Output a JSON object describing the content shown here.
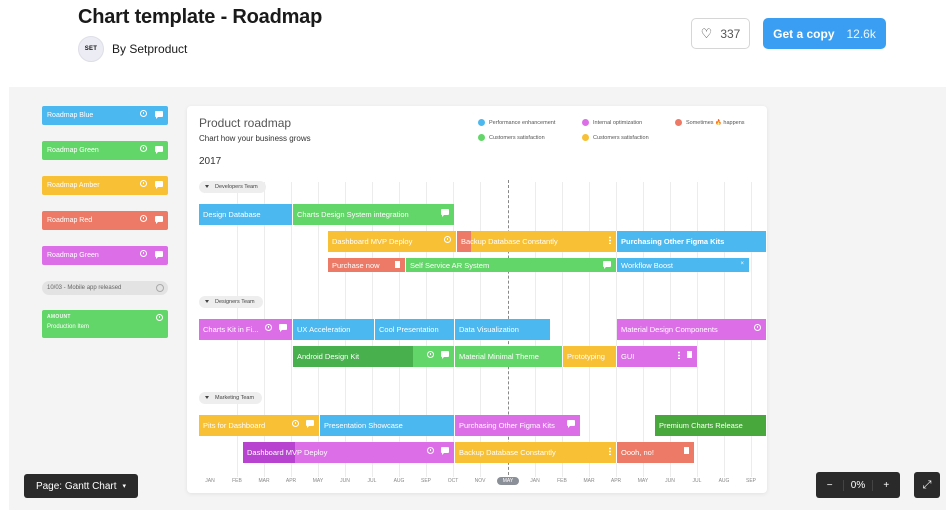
{
  "header": {
    "title": "Chart template - Roadmap",
    "author": "By Setproduct",
    "avatar_text": "SET",
    "likes": "337",
    "copy_label": "Get a copy",
    "copy_count": "12.6k"
  },
  "legend_tags": [
    {
      "label": "Roadmap Blue",
      "color": "#4cb8f0"
    },
    {
      "label": "Roadmap Green",
      "color": "#63d669"
    },
    {
      "label": "Roadmap Amber",
      "color": "#f7c035"
    },
    {
      "label": "Roadmap Red",
      "color": "#ec7a66"
    },
    {
      "label": "Roadmap Green",
      "color": "#dc6fe8"
    }
  ],
  "release_tag": "10/03 - Mobile app released",
  "production_tag": {
    "small": "AMOUNT",
    "label": "Production Item"
  },
  "chart": {
    "title": "Product roadmap",
    "subtitle": "Chart how your business grows",
    "year": "2017",
    "legend": [
      {
        "label": "Performance enhancement",
        "color": "#4cb8f0"
      },
      {
        "label": "Internal optimization",
        "color": "#dc6fe8"
      },
      {
        "label": "Sometimes 🔥 happens",
        "color": "#ec7a66"
      },
      {
        "label": "Customers satisfaction",
        "color": "#63d669"
      },
      {
        "label": "Customers satisfaction",
        "color": "#f7c035"
      }
    ],
    "groups": [
      "Developers Team",
      "Designers Team",
      "Marketing Team"
    ],
    "tasks": {
      "t1": "Design Database",
      "t2": "Charts Design System integration",
      "t3": "Dashboard MVP Deploy",
      "t4": "Backup Database Constantly",
      "t5": "Purchasing Other Figma Kits",
      "t6": "Purchase now",
      "t7": "Self Service AR System",
      "t8": "Workflow Boost",
      "t9": "Charts Kit in Fi...",
      "t10": "UX Acceleration",
      "t11": "Cool Presentation",
      "t12": "Data Visualization",
      "t13": "Material Design Components",
      "t14": "Android Design Kit",
      "t15": "Material Minimal Theme",
      "t16": "Prototyping",
      "t17": "GUI",
      "t18": "Pits for Dashboard",
      "t19": "Presentation Showcase",
      "t20": "Purchasing Other Figma Kits",
      "t21": "Premium Charts Release",
      "t22": "Dashboard MVP Deploy",
      "t23": "Backup Database Constantly",
      "t24": "Oooh, no!"
    },
    "months": [
      "JAN",
      "FEB",
      "MAR",
      "APR",
      "MAY",
      "JUN",
      "JUL",
      "AUG",
      "SEP",
      "OCT",
      "NOV",
      "MAY",
      "JAN",
      "FEB",
      "MAR",
      "APR",
      "MAY",
      "JUN",
      "JUL",
      "AUG",
      "SEP"
    ]
  },
  "controls": {
    "page_select": "Page: Gantt Chart",
    "zoom_minus": "−",
    "zoom_value": "0%",
    "zoom_plus": "+",
    "fullscreen": "⤢"
  }
}
